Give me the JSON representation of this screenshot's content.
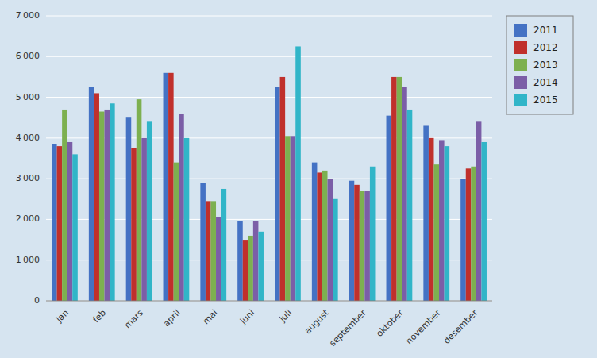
{
  "chart_data": {
    "type": "bar",
    "categories": [
      "jan",
      "feb",
      "mars",
      "april",
      "mai",
      "juni",
      "juli",
      "august",
      "september",
      "oktober",
      "november",
      "desember"
    ],
    "series": [
      {
        "name": "2011",
        "color": "#4472C4",
        "values": [
          3850,
          5250,
          4500,
          5600,
          2900,
          1950,
          5250,
          3400,
          2950,
          4550,
          4300,
          3000
        ]
      },
      {
        "name": "2012",
        "color": "#C0302C",
        "values": [
          3800,
          5100,
          3750,
          5600,
          2450,
          1500,
          5500,
          3150,
          2850,
          5500,
          4000,
          3250
        ]
      },
      {
        "name": "2013",
        "color": "#7DB050",
        "values": [
          4700,
          4650,
          4950,
          3400,
          2450,
          1600,
          4050,
          3200,
          2700,
          5500,
          3350,
          3300
        ]
      },
      {
        "name": "2014",
        "color": "#7B5EA7",
        "values": [
          3900,
          4700,
          4000,
          4600,
          2050,
          1950,
          4050,
          3000,
          2700,
          5250,
          3950,
          4400
        ]
      },
      {
        "name": "2015",
        "color": "#31B5C8",
        "values": [
          3600,
          4850,
          4400,
          4000,
          2750,
          1700,
          6250,
          2500,
          3300,
          4700,
          3800,
          3900
        ]
      }
    ],
    "ylim": [
      0,
      7000
    ],
    "yticks": [
      0,
      {
        "value": 1000,
        "label": "1 000"
      },
      {
        "value": 2000,
        "label": "2 000"
      },
      {
        "value": 3000,
        "label": "3 000"
      },
      {
        "value": 4000,
        "label": "4 000"
      },
      {
        "value": 5000,
        "label": "5 000"
      },
      {
        "value": 6000,
        "label": "6 000"
      },
      {
        "value": 7000,
        "label": "7 000"
      }
    ],
    "grid": true,
    "legend": "right"
  }
}
